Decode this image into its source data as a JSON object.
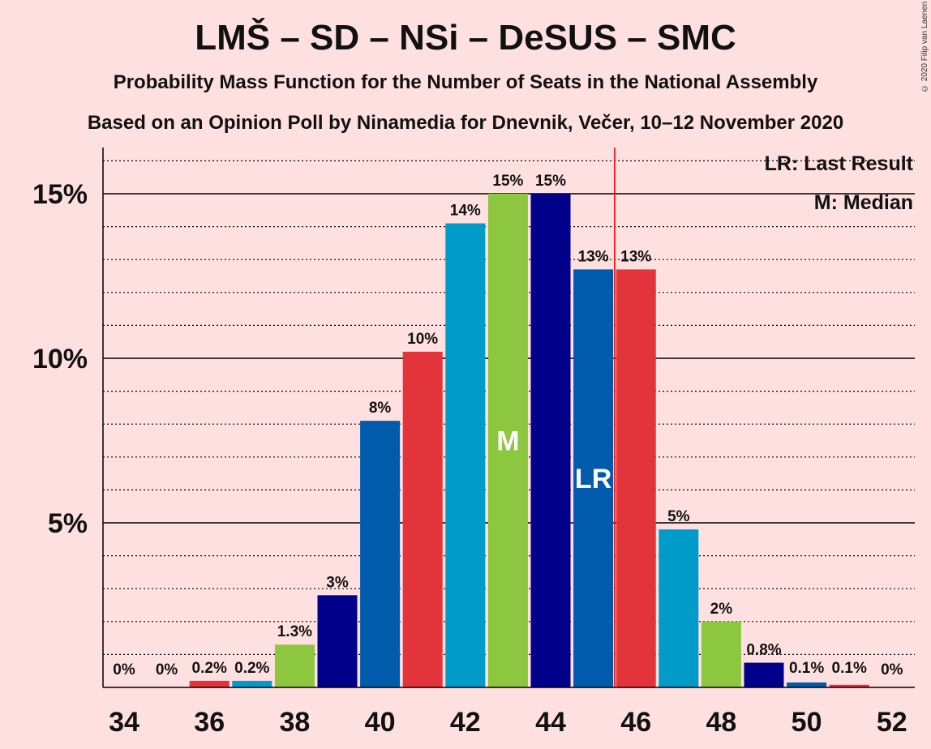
{
  "title": "LMŠ – SD – NSi – DeSUS – SMC",
  "subtitle": "Probability Mass Function for the Number of Seats in the National Assembly",
  "subtitle2": "Based on an Opinion Poll by Ninamedia for Dnevnik, Večer, 10–12 November 2020",
  "copyright": "© 2020 Filip van Laenen",
  "legend": {
    "last_result": "LR: Last Result",
    "median": "M: Median"
  },
  "chart_data": {
    "type": "bar",
    "x": [
      34,
      35,
      36,
      37,
      38,
      39,
      40,
      41,
      42,
      43,
      44,
      45,
      46,
      47,
      48,
      49,
      50,
      51,
      52
    ],
    "values": [
      0,
      0,
      0.2,
      0.2,
      1.3,
      2.8,
      8.1,
      10.2,
      14.1,
      15.0,
      15.0,
      12.7,
      12.7,
      4.8,
      2.0,
      0.75,
      0.15,
      0.08,
      0
    ],
    "labels": [
      "0%",
      "0%",
      "0.2%",
      "0.2%",
      "1.3%",
      "3%",
      "8%",
      "10%",
      "14%",
      "15%",
      "15%",
      "13%",
      "13%",
      "5%",
      "2%",
      "0.8%",
      "0.1%",
      "0.1%",
      "0%"
    ],
    "colors": [
      "#e3343c",
      "#009bc9",
      "#e3343c",
      "#009bc9",
      "#8dc63f",
      "#00008b",
      "#005bac",
      "#e3343c",
      "#009bc9",
      "#8dc63f",
      "#00008b",
      "#005bac",
      "#e3343c",
      "#009bc9",
      "#8dc63f",
      "#00008b",
      "#005bac",
      "#e3343c",
      "#009bc9"
    ],
    "xticks": [
      "34",
      "36",
      "38",
      "40",
      "42",
      "44",
      "46",
      "48",
      "50",
      "52"
    ],
    "yticks": [
      {
        "value": 5,
        "label": "5%"
      },
      {
        "value": 10,
        "label": "10%"
      },
      {
        "value": 15,
        "label": "15%"
      }
    ],
    "ylim": [
      0,
      16.5
    ],
    "median": {
      "seat": 43,
      "label": "M"
    },
    "last_result": {
      "seat": 45,
      "label": "LR",
      "line_color": "#ff0000"
    }
  }
}
